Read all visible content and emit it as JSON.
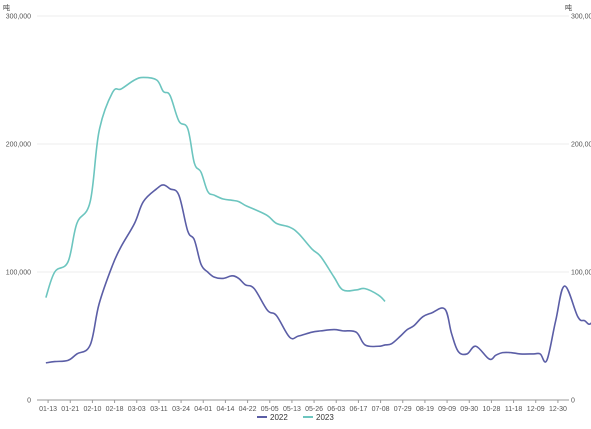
{
  "chart_data": {
    "type": "line",
    "title": "",
    "xlabel": "",
    "ylabel": "",
    "left_unit": "吨",
    "right_unit": "吨",
    "ylim": [
      0,
      300000
    ],
    "y_ticks": [
      0,
      100000,
      200000,
      300000
    ],
    "y_tick_labels": [
      "0",
      "100,000",
      "200,000",
      "300,000"
    ],
    "right_y_tick_labels": [
      "0",
      "100,000",
      "200,000",
      "300,000"
    ],
    "x_tick_labels": [
      "01-13",
      "01-21",
      "02-10",
      "02-18",
      "03-03",
      "03-11",
      "03-24",
      "04-01",
      "04-14",
      "04-22",
      "05-05",
      "05-13",
      "05-26",
      "06-03",
      "06-17",
      "07-08",
      "07-29",
      "08-19",
      "09-09",
      "09-30",
      "10-28",
      "11-18",
      "12-09",
      "12-30"
    ],
    "grid": true,
    "legend_position": "bottom-center",
    "colors": {
      "2022": "#5b5ea6",
      "2023": "#6cc5bf",
      "grid": "#eeeeee",
      "axis": "#999999"
    },
    "series": [
      {
        "name": "2022",
        "color": "#5b5ea6",
        "x": [
          0,
          0.4,
          1,
          1.4,
          2,
          2.4,
          3,
          3.4,
          4,
          4.4,
          5,
          5.3,
          5.6,
          6,
          6.4,
          6.7,
          7,
          7.3,
          7.6,
          8,
          8.4,
          8.7,
          9,
          9.4,
          10,
          10.4,
          11,
          11.4,
          12,
          12.4,
          13,
          13.4,
          14,
          14.4,
          15,
          15.3,
          15.6,
          16,
          16.3,
          16.6,
          17,
          17.4,
          18,
          18.3,
          18.6,
          19,
          19.4,
          20,
          20.3,
          20.6,
          21,
          21.4,
          22,
          22.3,
          22.6,
          23,
          23.4,
          24,
          24.3,
          24.6,
          25,
          25.4,
          26,
          26.3,
          26.6,
          27,
          27.3,
          27.6,
          28,
          28.4,
          29,
          29.4,
          29.8
        ],
        "y": [
          29000,
          30000,
          31000,
          36000,
          43000,
          75000,
          105000,
          120000,
          138000,
          155000,
          165000,
          168000,
          165000,
          160000,
          132000,
          125000,
          106000,
          100000,
          96000,
          95000,
          97000,
          95000,
          90000,
          87000,
          70000,
          66000,
          49000,
          50000,
          53000,
          54000,
          55000,
          54000,
          53000,
          43000,
          42000,
          43000,
          44000,
          50000,
          55000,
          58000,
          65000,
          68000,
          71000,
          52000,
          38000,
          36000,
          42000,
          32000,
          35000,
          37000,
          37000,
          36000,
          36000,
          36000,
          31000,
          62000,
          89000,
          65000,
          62000,
          60000,
          75000,
          85000,
          70000,
          68000,
          67000,
          78000,
          75000,
          64000,
          56000,
          58000,
          70000,
          70000,
          70000
        ],
        "draw_to": 29.8
      },
      {
        "name": "2023",
        "color": "#6cc5bf",
        "x": [
          0,
          0.4,
          1,
          1.4,
          2,
          2.4,
          3,
          3.4,
          4,
          4.4,
          5,
          5.3,
          5.6,
          6,
          6.4,
          6.7,
          7,
          7.3,
          7.6,
          8,
          8.4,
          8.7,
          9,
          9.4,
          10,
          10.4,
          11,
          11.4,
          12,
          12.4,
          13,
          13.4,
          14,
          14.4,
          15,
          15.3
        ],
        "y": [
          80000,
          100000,
          108000,
          138000,
          155000,
          210000,
          240000,
          243000,
          250000,
          252000,
          250000,
          241000,
          238000,
          218000,
          212000,
          185000,
          178000,
          163000,
          160000,
          157000,
          156000,
          155000,
          152000,
          149000,
          144000,
          138000,
          135000,
          130000,
          118000,
          112000,
          96000,
          86000,
          86000,
          87000,
          82000,
          77000
        ],
        "draw_to": 15.3
      }
    ]
  }
}
